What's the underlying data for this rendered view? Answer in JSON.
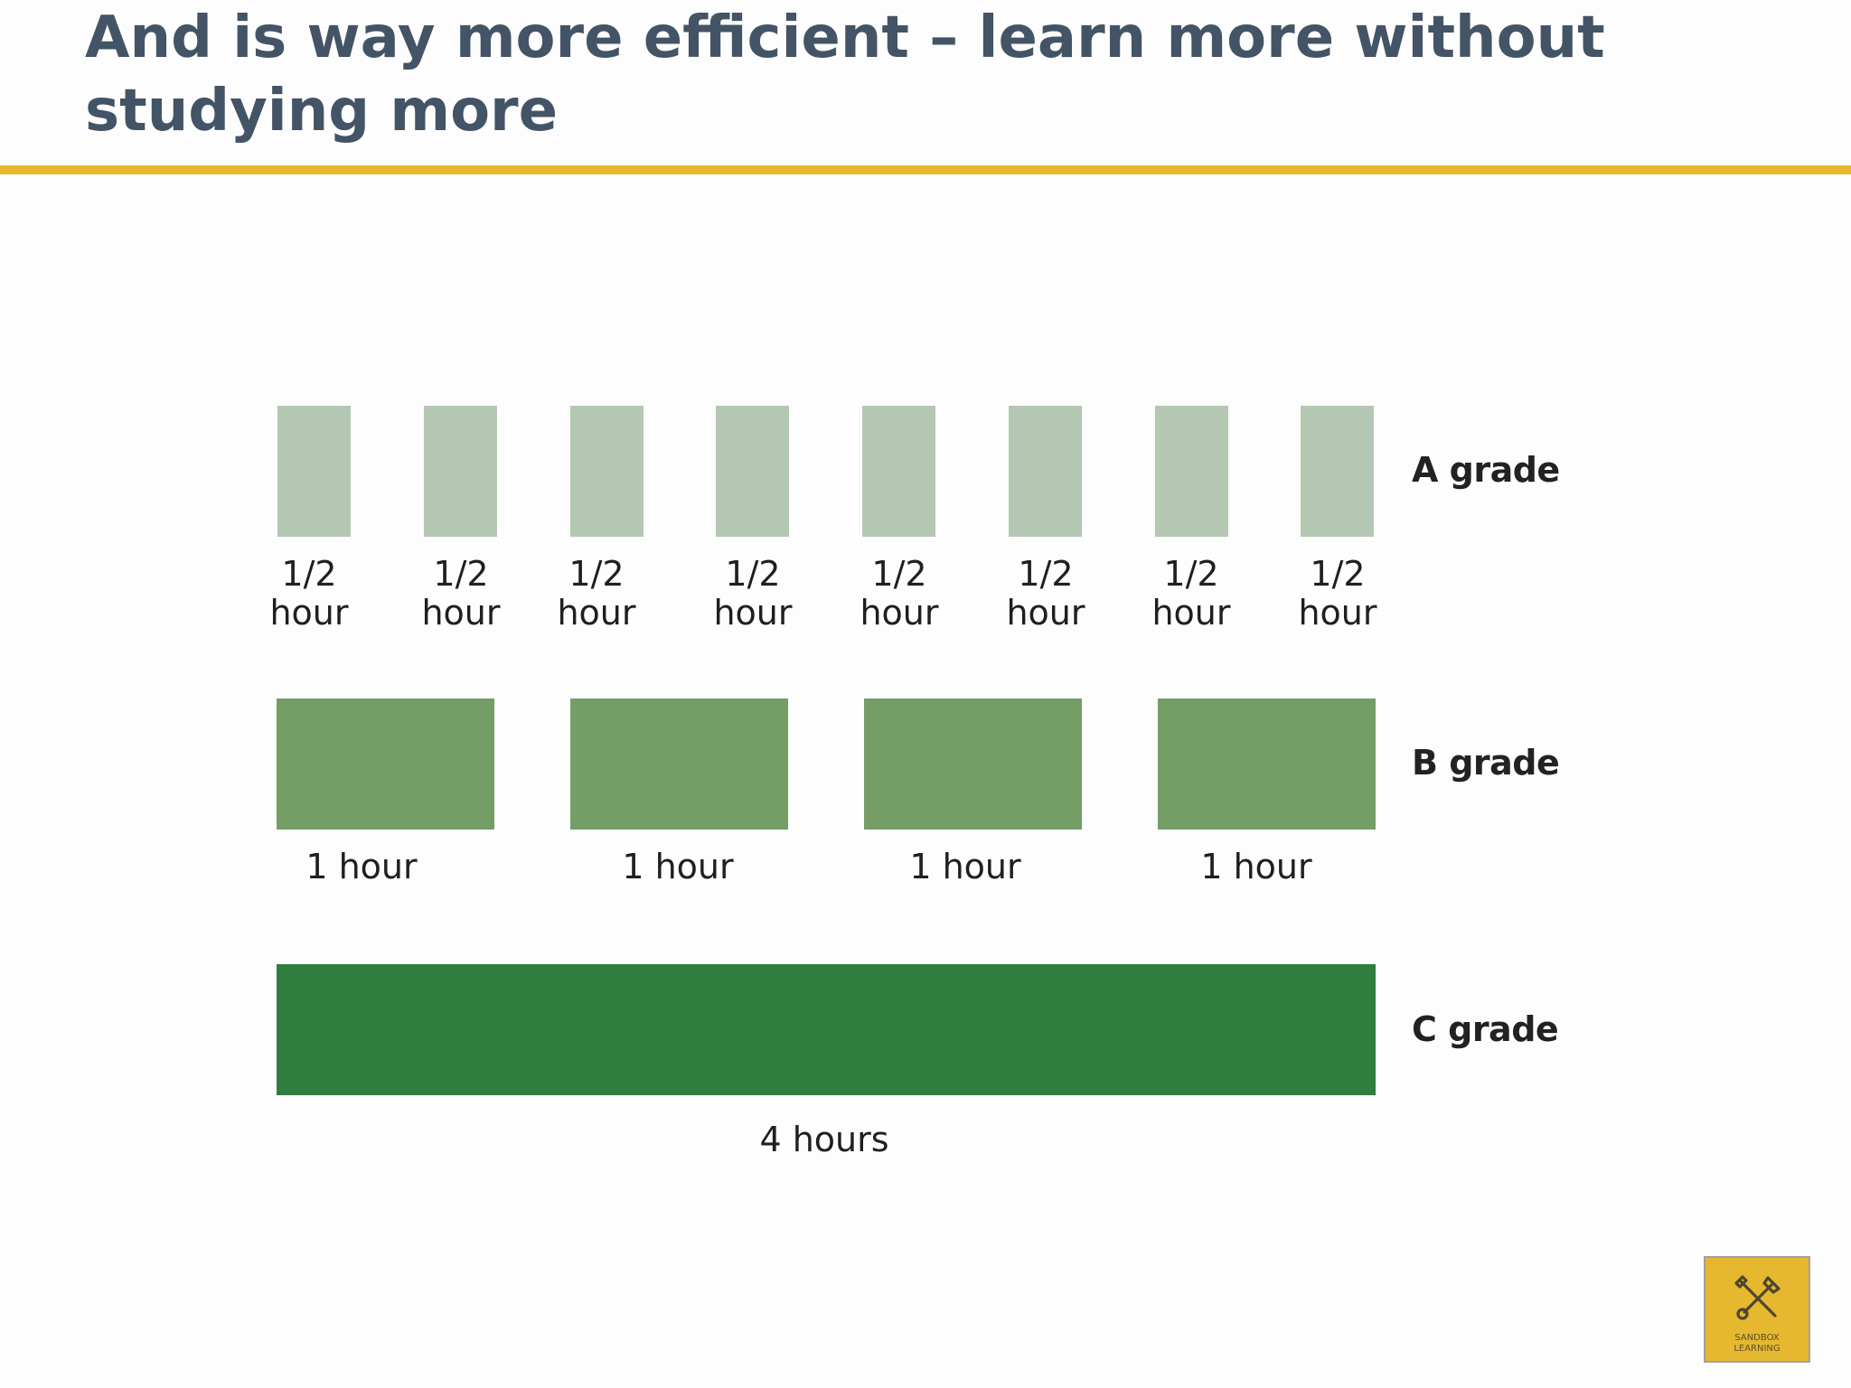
{
  "slide": {
    "title": "And is way more efficient – learn more without studying more"
  },
  "rows": [
    {
      "grade": "A grade",
      "sessions": [
        {
          "top": "1/2",
          "bottom": "hour"
        },
        {
          "top": "1/2",
          "bottom": "hour"
        },
        {
          "top": "1/2",
          "bottom": "hour"
        },
        {
          "top": "1/2",
          "bottom": "hour"
        },
        {
          "top": "1/2",
          "bottom": "hour"
        },
        {
          "top": "1/2",
          "bottom": "hour"
        },
        {
          "top": "1/2",
          "bottom": "hour"
        },
        {
          "top": "1/2",
          "bottom": "hour"
        }
      ]
    },
    {
      "grade": "B grade",
      "sessions": [
        {
          "label": "1 hour"
        },
        {
          "label": "1 hour"
        },
        {
          "label": "1 hour"
        },
        {
          "label": "1 hour"
        }
      ]
    },
    {
      "grade": "C grade",
      "sessions": [
        {
          "label": "4 hours"
        }
      ]
    }
  ],
  "colors": {
    "title": "#435466",
    "accent_rule": "#e8b92e",
    "a_block": "#b4c7b2",
    "b_block": "#759d66",
    "c_block": "#2f7d3f",
    "logo_bg": "#e6b82f"
  },
  "logo": {
    "icon": "crossed-tools-icon",
    "line1": "SANDBOX",
    "line2": "LEARNING"
  }
}
